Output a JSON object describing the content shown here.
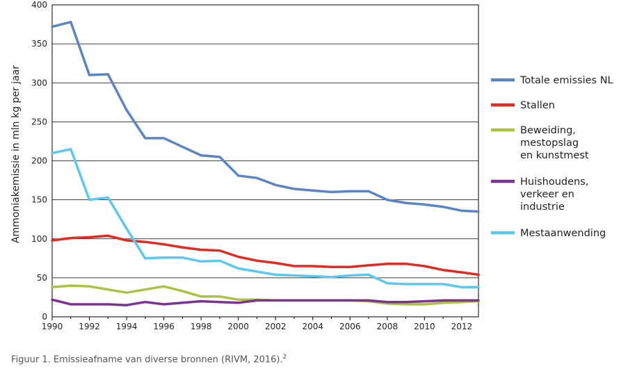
{
  "caption": {
    "text": "Figuur 1. Emissieafname van diverse bronnen (RIVM, 2016).",
    "superscript": "2"
  },
  "chart_data": {
    "type": "line",
    "title": "",
    "xlabel": "",
    "ylabel": "Ammoniakemissie in mln kg per jaar",
    "xlim": [
      1990,
      2012.9
    ],
    "ylim": [
      0,
      400
    ],
    "xticks": [
      1990,
      1992,
      1994,
      1996,
      1998,
      2000,
      2002,
      2004,
      2006,
      2008,
      2010,
      2012
    ],
    "yticks": [
      0,
      50,
      100,
      150,
      200,
      250,
      300,
      350,
      400
    ],
    "grid": "horizontal",
    "legend": "right",
    "x": [
      1990,
      1991,
      1992,
      1993,
      1994,
      1995,
      1996,
      1997,
      1998,
      1999,
      2000,
      2001,
      2002,
      2003,
      2004,
      2005,
      2006,
      2007,
      2008,
      2009,
      2010,
      2011,
      2012,
      2012.9
    ],
    "series": [
      {
        "name": [
          "Totale emissies NL"
        ],
        "color": "#5b84c4",
        "values": [
          372,
          378,
          310,
          311,
          265,
          229,
          229,
          218,
          207,
          205,
          181,
          178,
          169,
          164,
          162,
          160,
          161,
          161,
          150,
          146,
          144,
          141,
          136,
          135
        ]
      },
      {
        "name": [
          "Stallen"
        ],
        "color": "#e02a22",
        "values": [
          98,
          101,
          102,
          104,
          98,
          96,
          93,
          89,
          86,
          85,
          77,
          72,
          69,
          65,
          65,
          64,
          64,
          66,
          68,
          68,
          65,
          60,
          57,
          54
        ]
      },
      {
        "name": [
          "Beweiding,",
          "mestopslag",
          "en kunstmest"
        ],
        "color": "#a9c23f",
        "values": [
          38,
          40,
          39,
          35,
          31,
          35,
          39,
          33,
          26,
          26,
          22,
          22,
          21,
          21,
          21,
          21,
          21,
          20,
          17,
          16,
          16,
          18,
          19,
          20
        ]
      },
      {
        "name": [
          "Huishoudens,",
          "verkeer en",
          "industrie"
        ],
        "color": "#7b3294",
        "values": [
          22,
          16,
          16,
          16,
          15,
          19,
          16,
          18,
          20,
          19,
          18,
          21,
          21,
          21,
          21,
          21,
          21,
          21,
          19,
          19,
          20,
          21,
          21,
          21
        ]
      },
      {
        "name": [
          "Mestaanwending"
        ],
        "color": "#5bc8ee",
        "values": [
          210,
          215,
          150,
          153,
          113,
          75,
          76,
          76,
          71,
          72,
          62,
          58,
          54,
          53,
          52,
          51,
          53,
          54,
          43,
          42,
          42,
          42,
          38,
          38
        ]
      }
    ]
  }
}
